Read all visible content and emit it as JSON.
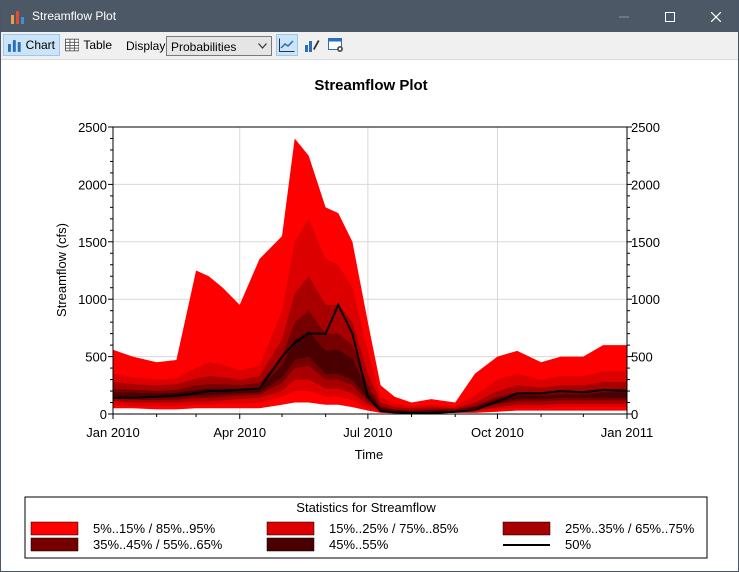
{
  "window": {
    "title": "Streamflow Plot",
    "controls": [
      "minimize-icon",
      "maximize-icon",
      "close-icon"
    ]
  },
  "toolbar": {
    "chart_label": "Chart",
    "table_label": "Table",
    "display_label": "Display:",
    "display_value": "Probabilities",
    "icons": [
      "line-chart-icon",
      "chart-options-icon",
      "window-settings-icon"
    ]
  },
  "colors": {
    "titlebar": "#4d5866",
    "band_5_15": "#ff0000",
    "band_15_25": "#dd0000",
    "band_25_35": "#a80000",
    "band_35_45": "#760000",
    "band_45_55": "#4a0000",
    "median": "#000000"
  },
  "chart_data": {
    "type": "area",
    "title": "Streamflow Plot",
    "xlabel": "Time",
    "ylabel": "Streamflow (cfs)",
    "xlim": [
      "2010-01-01",
      "2011-01-01"
    ],
    "ylim": [
      0,
      2500
    ],
    "y_ticks": [
      "0",
      "500",
      "1000",
      "1500",
      "2000",
      "2500"
    ],
    "x_ticks": [
      "Jan 2010",
      "Apr 2010",
      "Jul 2010",
      "Oct 2010",
      "Jan 2011"
    ],
    "right_axis_mirrors_left": true,
    "grid": true,
    "legend_title": "Statistics for Streamflow",
    "legend_placement": "bottom",
    "x": [
      "2010-01-01",
      "2010-01-15",
      "2010-02-01",
      "2010-02-15",
      "2010-03-01",
      "2010-03-10",
      "2010-03-20",
      "2010-04-01",
      "2010-04-15",
      "2010-05-01",
      "2010-05-10",
      "2010-05-20",
      "2010-06-01",
      "2010-06-10",
      "2010-06-20",
      "2010-07-01",
      "2010-07-10",
      "2010-07-20",
      "2010-08-01",
      "2010-08-15",
      "2010-09-01",
      "2010-09-15",
      "2010-10-01",
      "2010-10-15",
      "2010-11-01",
      "2010-11-15",
      "2010-12-01",
      "2010-12-15",
      "2011-01-01"
    ],
    "series": [
      {
        "name": "5%..15% / 85%..95%",
        "low": [
          50,
          50,
          40,
          40,
          50,
          50,
          50,
          50,
          50,
          80,
          100,
          100,
          80,
          80,
          60,
          30,
          10,
          5,
          5,
          5,
          10,
          10,
          20,
          30,
          30,
          30,
          30,
          30,
          30
        ],
        "high": [
          560,
          500,
          450,
          470,
          1250,
          1200,
          1100,
          950,
          1350,
          1550,
          2400,
          2250,
          1800,
          1750,
          1500,
          800,
          250,
          150,
          100,
          130,
          100,
          350,
          500,
          550,
          450,
          500,
          500,
          600,
          600
        ]
      },
      {
        "name": "15%..25% / 75%..85%",
        "low": [
          80,
          70,
          70,
          70,
          80,
          80,
          90,
          90,
          100,
          150,
          200,
          200,
          150,
          150,
          120,
          50,
          20,
          10,
          10,
          10,
          20,
          20,
          40,
          50,
          50,
          60,
          60,
          60,
          60
        ],
        "high": [
          350,
          320,
          300,
          310,
          400,
          450,
          430,
          380,
          420,
          900,
          1500,
          1700,
          1350,
          1300,
          1100,
          550,
          150,
          90,
          70,
          80,
          70,
          160,
          300,
          350,
          300,
          330,
          330,
          370,
          370
        ]
      },
      {
        "name": "25%..35% / 65%..75%",
        "low": [
          110,
          100,
          100,
          100,
          110,
          110,
          120,
          130,
          140,
          200,
          300,
          300,
          220,
          220,
          180,
          80,
          30,
          15,
          15,
          15,
          25,
          30,
          60,
          80,
          80,
          90,
          90,
          90,
          90
        ],
        "high": [
          280,
          260,
          250,
          260,
          310,
          330,
          320,
          300,
          330,
          650,
          1050,
          1200,
          950,
          950,
          800,
          350,
          100,
          60,
          50,
          60,
          50,
          100,
          200,
          250,
          230,
          250,
          250,
          280,
          280
        ]
      },
      {
        "name": "35%..45% / 55%..65%",
        "low": [
          130,
          125,
          120,
          125,
          140,
          140,
          150,
          160,
          170,
          270,
          400,
          420,
          300,
          300,
          250,
          110,
          35,
          20,
          20,
          20,
          30,
          40,
          80,
          110,
          110,
          120,
          120,
          120,
          120
        ],
        "high": [
          220,
          210,
          200,
          210,
          250,
          260,
          260,
          250,
          270,
          500,
          800,
          900,
          700,
          700,
          600,
          250,
          70,
          40,
          35,
          40,
          40,
          70,
          150,
          190,
          180,
          200,
          200,
          220,
          220
        ]
      },
      {
        "name": "45%..55%",
        "low": [
          150,
          145,
          140,
          145,
          160,
          165,
          170,
          180,
          190,
          320,
          470,
          500,
          350,
          350,
          300,
          130,
          40,
          20,
          20,
          20,
          35,
          45,
          95,
          130,
          130,
          140,
          140,
          140,
          140
        ],
        "high": [
          190,
          185,
          180,
          185,
          210,
          220,
          220,
          220,
          230,
          420,
          650,
          720,
          550,
          560,
          480,
          200,
          55,
          30,
          25,
          30,
          35,
          60,
          130,
          170,
          160,
          170,
          170,
          190,
          190
        ]
      },
      {
        "name": "50%",
        "y": [
          140,
          140,
          150,
          160,
          180,
          200,
          200,
          210,
          220,
          500,
          620,
          700,
          700,
          950,
          700,
          150,
          25,
          15,
          10,
          10,
          20,
          35,
          110,
          180,
          180,
          200,
          190,
          210,
          200
        ]
      }
    ]
  }
}
